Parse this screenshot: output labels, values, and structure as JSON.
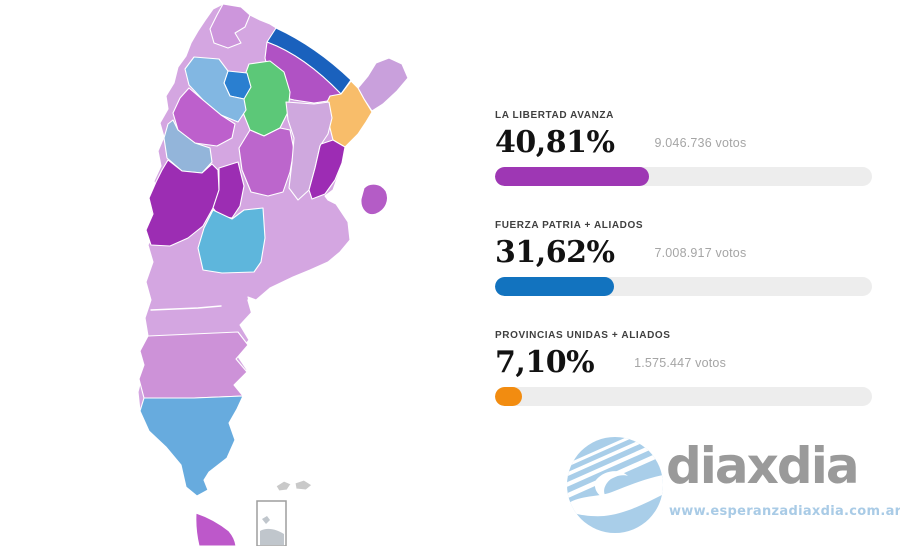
{
  "page": {
    "background": "#ffffff"
  },
  "chart_data": {
    "type": "bar",
    "orientation": "horizontal",
    "title": "",
    "categories": [
      "LA LIBERTAD AVANZA",
      "FUERZA PATRIA + ALIADOS",
      "PROVINCIAS UNIDAS + ALIADOS"
    ],
    "values": [
      40.81,
      31.62,
      7.1
    ],
    "value_labels": [
      "40,81%",
      "31,62%",
      "7,10%"
    ],
    "votes_labels": [
      "9.046.736 votos",
      "7.008.917 votos",
      "1.575.447 votos"
    ],
    "bar_colors": [
      "#9e37b4",
      "#1273bf",
      "#f28c10"
    ],
    "track_color": "#ededed",
    "xlim": [
      0,
      100
    ],
    "legend_position": "none",
    "grid": false
  },
  "results": {
    "parties": [
      {
        "label": "LA LIBERTAD AVANZA",
        "percent": "40,81%",
        "percent_value": 40.81,
        "votes": "9.046.736 votos",
        "color": "#9e37b4"
      },
      {
        "label": "FUERZA PATRIA + ALIADOS",
        "percent": "31,62%",
        "percent_value": 31.62,
        "votes": "7.008.917 votos",
        "color": "#1273bf"
      },
      {
        "label": "PROVINCIAS UNIDAS + ALIADOS",
        "percent": "7,10%",
        "percent_value": 7.1,
        "votes": "1.575.447 votos",
        "color": "#f28c10"
      }
    ]
  },
  "map": {
    "kind": "argentina-provinces-choropleth",
    "base_color": "#d4a6e1",
    "border_color": "#ffffff",
    "provinces": {
      "base": {
        "name": "Argentina (Salta, Buenos Aires, Neuquén, Río Negro)",
        "color": "#d4a6e1"
      },
      "jujuy": {
        "name": "Jujuy",
        "color": "#cd96dc"
      },
      "formosa": {
        "name": "Formosa",
        "color": "#1a61bd"
      },
      "chaco": {
        "name": "Chaco",
        "color": "#b052c4"
      },
      "misiones": {
        "name": "Misiones",
        "color": "#c9a0dc"
      },
      "corrientes": {
        "name": "Corrientes",
        "color": "#f8bd6a"
      },
      "santiago": {
        "name": "Santiago del Estero",
        "color": "#5cc878"
      },
      "tucuman": {
        "name": "Tucumán",
        "color": "#2a7fd0"
      },
      "catamarca": {
        "name": "Catamarca",
        "color": "#82b7e2"
      },
      "la_rioja": {
        "name": "La Rioja",
        "color": "#bd60cc"
      },
      "san_juan": {
        "name": "San Juan",
        "color": "#93b5da"
      },
      "mendoza": {
        "name": "Mendoza",
        "color": "#9c2db3"
      },
      "san_luis": {
        "name": "San Luis",
        "color": "#9c2db3"
      },
      "cordoba": {
        "name": "Córdoba",
        "color": "#bc66cc"
      },
      "santa_fe": {
        "name": "Santa Fe",
        "color": "#cfa8de"
      },
      "entre_rios": {
        "name": "Entre Ríos",
        "color": "#9d2cb4"
      },
      "caba": {
        "name": "Ciudad de Buenos Aires",
        "color": "#b45cc6"
      },
      "la_pampa": {
        "name": "La Pampa",
        "color": "#5eb6dc"
      },
      "chubut": {
        "name": "Chubut",
        "color": "#cd92d8"
      },
      "santa_cruz": {
        "name": "Santa Cruz",
        "color": "#67abde"
      },
      "tierra_del_fuego": {
        "name": "Tierra del Fuego",
        "color": "#bd58ca"
      },
      "malvinas": {
        "name": "Islas Malvinas",
        "color": "#c9c9c9"
      },
      "inset": {
        "name": "Antarctic inset",
        "color": "#c0c6cc"
      }
    }
  },
  "logo": {
    "text": "diaxdia",
    "url": "www.esperanzadiaxdia.com.ar",
    "icon": "diaxdia-globe-icon",
    "icon_color": "#a9cee9",
    "text_color": "#9a9a9a",
    "url_color": "#a9cbe6"
  }
}
